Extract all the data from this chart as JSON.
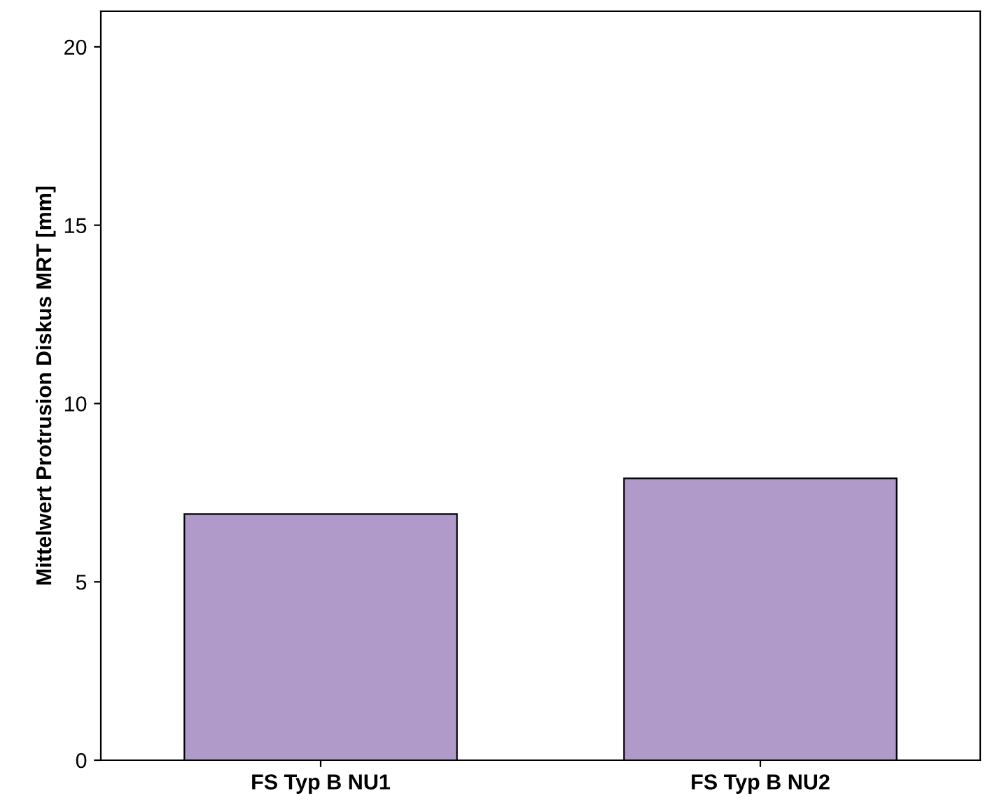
{
  "chart_data": {
    "type": "bar",
    "ylabel": "Mittelwert Protrusion Diskus MRT [mm]",
    "categories": [
      "FS Typ B NU1",
      "FS Typ B NU2"
    ],
    "values": [
      6.9,
      7.9
    ],
    "colors": [
      "#b09aca",
      "#b09aca"
    ],
    "ylim": [
      0,
      21
    ],
    "yticks": [
      0,
      5,
      10,
      15,
      20
    ],
    "grid": false,
    "legend": false
  }
}
